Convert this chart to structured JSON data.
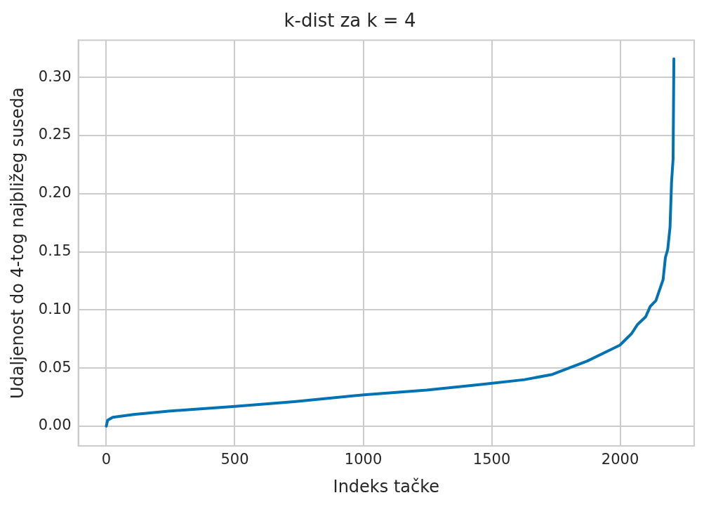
{
  "chart_data": {
    "type": "line",
    "title": "k-dist za k = 4",
    "xlabel": "Indeks tačke",
    "ylabel": "Udaljenost do 4-tog najbližeg suseda",
    "xlim": [
      -109,
      2288
    ],
    "xticks": [
      0,
      500,
      1000,
      1500,
      2000
    ],
    "ylim": [
      -0.017,
      0.332
    ],
    "yticks": [
      {
        "value": 0,
        "label": "0.00"
      },
      {
        "value": 0.05,
        "label": "0.05"
      },
      {
        "value": 0.1,
        "label": "0.10"
      },
      {
        "value": 0.15,
        "label": "0.15"
      },
      {
        "value": 0.2,
        "label": "0.20"
      },
      {
        "value": 0.25,
        "label": "0.25"
      },
      {
        "value": 0.3,
        "label": "0.30"
      }
    ],
    "grid": true,
    "legend": false,
    "series": [
      {
        "color": "#0173b2",
        "x": [
          0,
          5,
          25,
          106,
          242,
          500,
          731,
          1003,
          1247,
          1465,
          1628,
          1736,
          1872,
          1999,
          2044,
          2067,
          2099,
          2117,
          2139,
          2153,
          2167,
          2176,
          2185,
          2194,
          2200,
          2206,
          2209
        ],
        "values": [
          0,
          0.005,
          0.0076,
          0.01,
          0.0129,
          0.017,
          0.021,
          0.027,
          0.031,
          0.036,
          0.04,
          0.0445,
          0.056,
          0.0697,
          0.0795,
          0.0873,
          0.094,
          0.103,
          0.108,
          0.117,
          0.126,
          0.145,
          0.152,
          0.171,
          0.21,
          0.23,
          0.316
        ]
      }
    ]
  }
}
